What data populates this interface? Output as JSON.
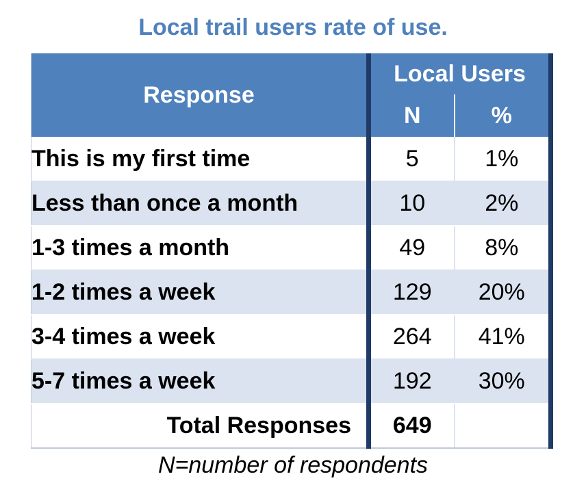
{
  "title": "Local trail users rate of use.",
  "footnote": "N=number of respondents",
  "chart_data": {
    "type": "table",
    "title": "Local trail users rate of use.",
    "header": {
      "response": "Response",
      "group": "Local Users",
      "n": "N",
      "pct": "%"
    },
    "rows": [
      {
        "response": "This is my first time",
        "n": "5",
        "pct": "1%"
      },
      {
        "response": "Less than once a month",
        "n": "10",
        "pct": "2%"
      },
      {
        "response": "1-3 times a month",
        "n": "49",
        "pct": "8%"
      },
      {
        "response": "1-2 times a week",
        "n": "129",
        "pct": "20%"
      },
      {
        "response": "3-4 times a week",
        "n": "264",
        "pct": "41%"
      },
      {
        "response": "5-7 times a week",
        "n": "192",
        "pct": "30%"
      }
    ],
    "total": {
      "label": "Total Responses",
      "n": "649",
      "pct": ""
    }
  },
  "colors": {
    "header": "#4f81bd",
    "title": "#4f81bd",
    "band": "#dbe3f0",
    "divider": "#1f3b66"
  }
}
